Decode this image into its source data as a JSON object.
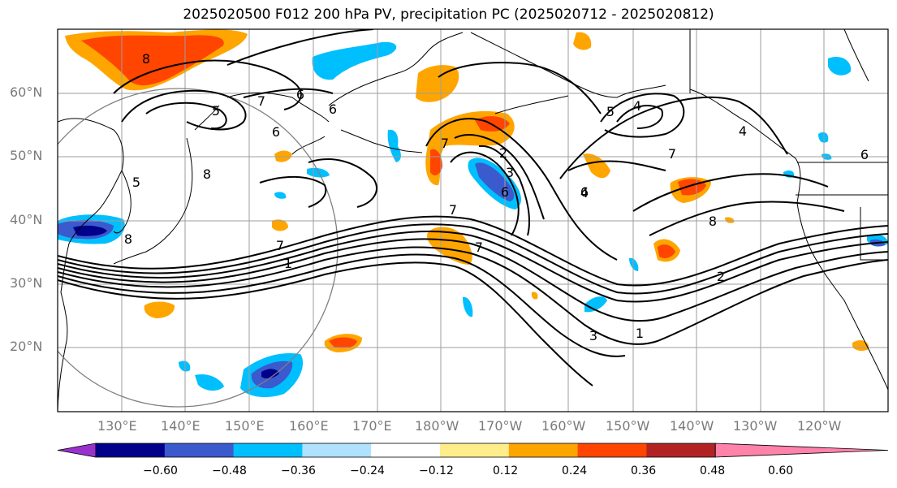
{
  "title": "2025020500 F012 200 hPa PV, precipitation PC (2025020712 - 2025020812)",
  "lat_labels": [
    "60°N",
    "50°N",
    "40°N",
    "30°N",
    "20°N"
  ],
  "lon_labels": [
    "130°E",
    "140°E",
    "150°E",
    "160°E",
    "170°E",
    "180°W",
    "170°W",
    "160°W",
    "150°W",
    "140°W",
    "130°W",
    "120°W"
  ],
  "colorbar": {
    "ticks": [
      "−0.60",
      "−0.48",
      "−0.36",
      "−0.24",
      "−0.12",
      "0.12",
      "0.24",
      "0.36",
      "0.48",
      "0.60"
    ],
    "colors": [
      "#9932cc",
      "#00008b",
      "#3a5acd",
      "#00bfff",
      "#b0e2ff",
      "#ffffff",
      "#ffec8b",
      "#ffa500",
      "#ff4500",
      "#b22222",
      "#ff82ab"
    ]
  },
  "contour_labels": [
    "8",
    "5",
    "6",
    "6",
    "7",
    "6",
    "5",
    "8",
    "1",
    "7",
    "2",
    "3",
    "6",
    "7",
    "7",
    "4",
    "5",
    "4",
    "7",
    "4",
    "6",
    "8",
    "2",
    "7",
    "8",
    "3",
    "1",
    "6"
  ],
  "colors": {
    "gridline": "#9e9e9e",
    "coastline": "#000000",
    "contour": "#000000",
    "circle": "#808080"
  }
}
